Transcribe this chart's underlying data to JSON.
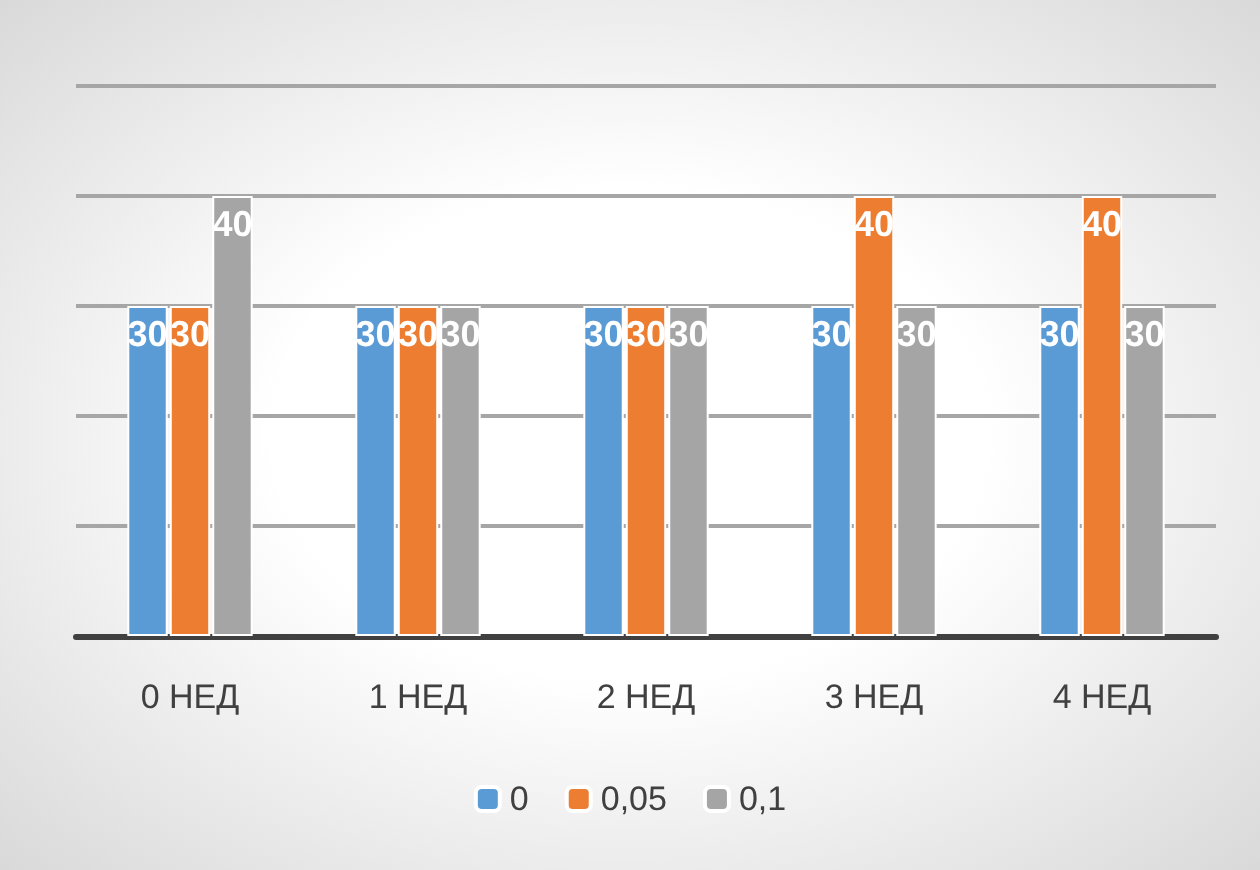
{
  "chart_data": {
    "type": "bar",
    "categories": [
      "0 НЕД",
      "1 НЕД",
      "2 НЕД",
      "3 НЕД",
      "4 НЕД"
    ],
    "series": [
      {
        "name": "0",
        "color": "#5b9bd5",
        "values": [
          30,
          30,
          30,
          30,
          30
        ]
      },
      {
        "name": "0,05",
        "color": "#ed7d31",
        "values": [
          30,
          30,
          30,
          40,
          40
        ]
      },
      {
        "name": "0,1",
        "color": "#a5a5a5",
        "values": [
          40,
          30,
          30,
          30,
          30
        ]
      }
    ],
    "ylim": [
      0,
      50
    ],
    "yticks": [
      {
        "value": 0,
        "label": null
      },
      {
        "value": 10,
        "label": null
      },
      {
        "value": 20,
        "label": null
      },
      {
        "value": 30,
        "label": null
      },
      {
        "value": 40,
        "label": null
      },
      {
        "value": 50,
        "label": null
      }
    ],
    "tick_labels": "x",
    "grid": true,
    "legend": "bottom",
    "data_labels": true
  }
}
